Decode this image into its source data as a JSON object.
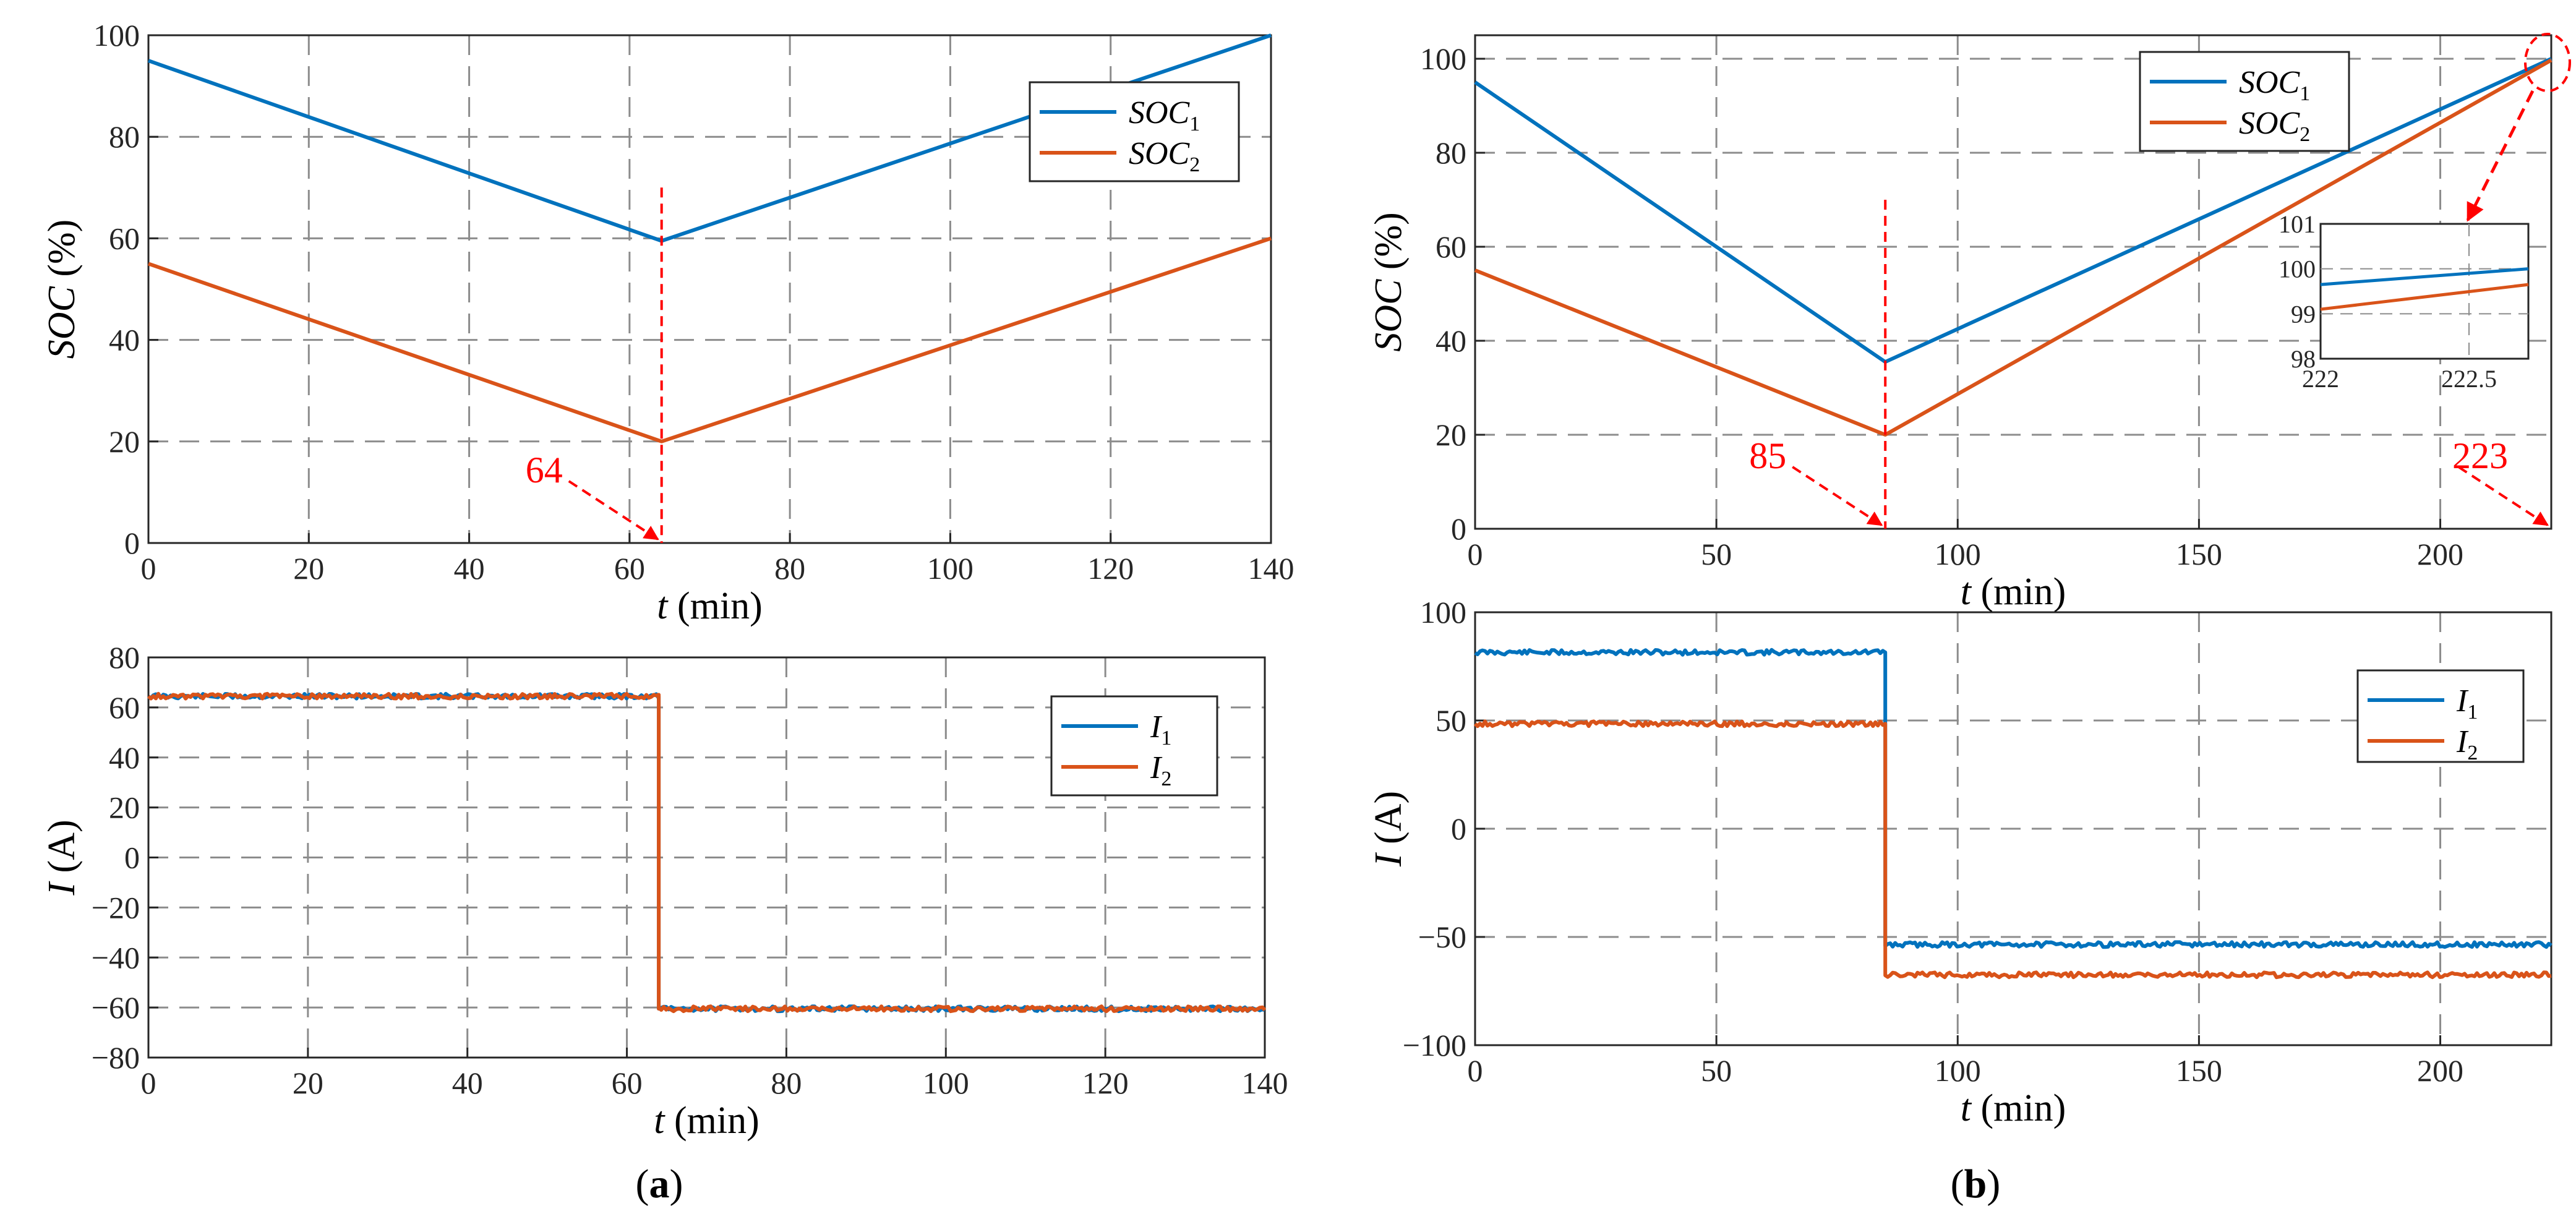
{
  "colors": {
    "series1": "#0072BD",
    "series2": "#D95319",
    "annotation": "#FF0000",
    "grid": "#8C8C8C"
  },
  "panel_labels": {
    "a": "a",
    "b": "b"
  },
  "chart_data": [
    {
      "id": "a-soc",
      "type": "line",
      "xlabel": "t",
      "xunit": " (min)",
      "ylabel": "SOC",
      "yunit": " (%)",
      "xlim": [
        0,
        140
      ],
      "ylim": [
        0,
        100
      ],
      "xticks": [
        "0",
        "20",
        "40",
        "60",
        "80",
        "100",
        "120",
        "140"
      ],
      "yticks": [
        "0",
        "20",
        "40",
        "60",
        "80",
        "100"
      ],
      "series": [
        {
          "name": "SOC",
          "sub": "1",
          "x": [
            0,
            64,
            140
          ],
          "y": [
            95,
            59.5,
            100
          ]
        },
        {
          "name": "SOC",
          "sub": "2",
          "x": [
            0,
            64,
            140
          ],
          "y": [
            55,
            20,
            60
          ]
        }
      ],
      "legend": "top-right",
      "annotation": {
        "text": "64",
        "x": 64,
        "y_from": 70,
        "y_to": 0
      }
    },
    {
      "id": "a-current",
      "type": "line",
      "xlabel": "t",
      "xunit": " (min)",
      "ylabel": "I",
      "yunit": " (A)",
      "xlim": [
        0,
        140
      ],
      "ylim": [
        -80,
        80
      ],
      "xticks": [
        "0",
        "20",
        "40",
        "60",
        "80",
        "100",
        "120",
        "140"
      ],
      "yticks": [
        "−80",
        "−60",
        "−40",
        "−20",
        "0",
        "20",
        "40",
        "60",
        "80"
      ],
      "series": [
        {
          "name": "I",
          "sub": "1",
          "x": [
            0,
            64,
            64,
            140
          ],
          "y": [
            64.5,
            64.5,
            -60.5,
            -60.5
          ]
        },
        {
          "name": "I",
          "sub": "2",
          "x": [
            0,
            64,
            64,
            140
          ],
          "y": [
            64.5,
            64.5,
            -60.5,
            -60.5
          ]
        }
      ],
      "legend": "top-right"
    },
    {
      "id": "b-soc",
      "type": "line",
      "xlabel": "t",
      "xunit": " (min)",
      "ylabel": "SOC",
      "yunit": " (%)",
      "xlim": [
        0,
        223
      ],
      "ylim": [
        0,
        105
      ],
      "xticks": [
        "0",
        "50",
        "100",
        "150",
        "200"
      ],
      "yticks": [
        "0",
        "20",
        "40",
        "60",
        "80",
        "100"
      ],
      "series": [
        {
          "name": "SOC",
          "sub": "1",
          "x": [
            0,
            85,
            223
          ],
          "y": [
            95,
            35.5,
            100
          ]
        },
        {
          "name": "SOC",
          "sub": "2",
          "x": [
            0,
            85,
            223
          ],
          "y": [
            55,
            20,
            99.7
          ]
        }
      ],
      "legend": "top-left",
      "annotations": [
        {
          "text": "85",
          "x": 85,
          "y_from": 70,
          "y_to": 0
        },
        {
          "text": "223",
          "x": 223
        }
      ],
      "inset": {
        "xlim": [
          222,
          222.7
        ],
        "ylim": [
          98,
          101
        ],
        "xticks": [
          "222",
          "222.5"
        ],
        "yticks": [
          "98",
          "99",
          "100",
          "101"
        ],
        "series1": {
          "x": [
            222,
            222.7
          ],
          "y": [
            99.65,
            100.0
          ]
        },
        "series2": {
          "x": [
            222,
            222.7
          ],
          "y": [
            99.1,
            99.65
          ]
        }
      }
    },
    {
      "id": "b-current",
      "type": "line",
      "xlabel": "t",
      "xunit": " (min)",
      "ylabel": "I",
      "yunit": " (A)",
      "xlim": [
        0,
        223
      ],
      "ylim": [
        -100,
        100
      ],
      "xticks": [
        "0",
        "50",
        "100",
        "150",
        "200"
      ],
      "yticks": [
        "−100",
        "−50",
        "0",
        "50",
        "100"
      ],
      "series": [
        {
          "name": "I",
          "sub": "1",
          "x": [
            0,
            85,
            85,
            223
          ],
          "y": [
            81.5,
            81.5,
            -53.5,
            -53.5
          ]
        },
        {
          "name": "I",
          "sub": "2",
          "x": [
            0,
            85,
            85,
            223
          ],
          "y": [
            48.5,
            48.5,
            -67.5,
            -67.5
          ]
        }
      ],
      "legend": "top-right"
    }
  ]
}
